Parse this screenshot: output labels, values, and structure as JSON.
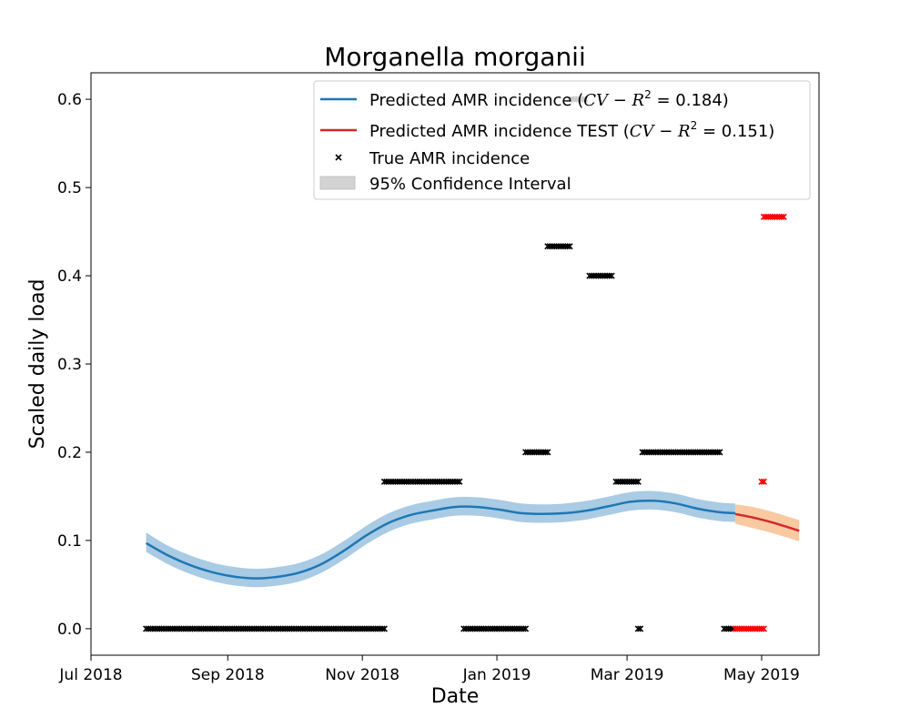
{
  "chart_data": {
    "type": "line",
    "title": "Morganella morganii",
    "xlabel": "Date",
    "ylabel": "Scaled daily load",
    "xlim": [
      "2018-07-01",
      "2019-05-27"
    ],
    "ylim": [
      -0.03,
      0.63
    ],
    "x_ticks": [
      {
        "date": "2018-07-01",
        "label": "Jul 2018"
      },
      {
        "date": "2018-09-01",
        "label": "Sep 2018"
      },
      {
        "date": "2018-11-01",
        "label": "Nov 2018"
      },
      {
        "date": "2019-01-01",
        "label": "Jan 2019"
      },
      {
        "date": "2019-03-01",
        "label": "Mar 2019"
      },
      {
        "date": "2019-05-01",
        "label": "May 2019"
      }
    ],
    "y_ticks": [
      0.0,
      0.1,
      0.2,
      0.3,
      0.4,
      0.5,
      0.6
    ],
    "y_tick_labels": [
      "0.0",
      "0.1",
      "0.2",
      "0.3",
      "0.4",
      "0.5",
      "0.6"
    ],
    "grid": false,
    "legend_position": "top-right",
    "legend": {
      "pred_prefix": "Predicted AMR incidence (",
      "pred_cv": "CV",
      "pred_minus": " − ",
      "pred_r": "R",
      "pred_sup": "2",
      "pred_suffix": " = 0.184)",
      "test_prefix": "Predicted AMR incidence TEST (",
      "test_cv": "CV",
      "test_minus": " − ",
      "test_r": "R",
      "test_sup": "2",
      "test_suffix": " = 0.151)",
      "true_label": "True AMR incidence",
      "ci_label": "95% Confidence Interval"
    },
    "colors": {
      "predicted": "#1f77b4",
      "predicted_band": "#a9cbe4",
      "test": "#d62728",
      "test_band": "#f9c9a2",
      "true_marker": "#000000",
      "test_marker": "#ff0000",
      "legend_ci": "#d3d3d3"
    },
    "series": [
      {
        "name": "Predicted AMR incidence",
        "x": [
          "2018-07-26",
          "2018-08-05",
          "2018-08-15",
          "2018-08-25",
          "2018-09-04",
          "2018-09-14",
          "2018-09-24",
          "2018-10-04",
          "2018-10-14",
          "2018-10-24",
          "2018-11-03",
          "2018-11-13",
          "2018-11-23",
          "2018-12-03",
          "2018-12-13",
          "2018-12-23",
          "2019-01-02",
          "2019-01-12",
          "2019-01-22",
          "2019-02-01",
          "2019-02-11",
          "2019-02-21",
          "2019-03-03",
          "2019-03-13",
          "2019-03-23",
          "2019-04-02",
          "2019-04-12",
          "2019-04-19"
        ],
        "y": [
          0.097,
          0.083,
          0.072,
          0.064,
          0.059,
          0.057,
          0.059,
          0.064,
          0.074,
          0.089,
          0.106,
          0.12,
          0.129,
          0.134,
          0.138,
          0.138,
          0.135,
          0.131,
          0.13,
          0.131,
          0.134,
          0.139,
          0.144,
          0.145,
          0.142,
          0.136,
          0.132,
          0.131
        ],
        "ci_lower": [
          0.087,
          0.073,
          0.062,
          0.054,
          0.049,
          0.047,
          0.049,
          0.054,
          0.064,
          0.079,
          0.096,
          0.11,
          0.119,
          0.124,
          0.128,
          0.128,
          0.125,
          0.121,
          0.12,
          0.121,
          0.124,
          0.129,
          0.134,
          0.135,
          0.132,
          0.126,
          0.122,
          0.121
        ],
        "ci_upper": [
          0.109,
          0.094,
          0.083,
          0.075,
          0.07,
          0.068,
          0.07,
          0.075,
          0.085,
          0.1,
          0.117,
          0.131,
          0.14,
          0.145,
          0.149,
          0.149,
          0.146,
          0.142,
          0.141,
          0.142,
          0.145,
          0.15,
          0.155,
          0.156,
          0.153,
          0.147,
          0.143,
          0.142
        ]
      },
      {
        "name": "Predicted AMR incidence TEST",
        "x": [
          "2019-04-19",
          "2019-04-27",
          "2019-05-05",
          "2019-05-13",
          "2019-05-18"
        ],
        "y": [
          0.13,
          0.126,
          0.121,
          0.115,
          0.111
        ],
        "ci_lower": [
          0.119,
          0.114,
          0.109,
          0.103,
          0.099
        ],
        "ci_upper": [
          0.141,
          0.138,
          0.133,
          0.127,
          0.123
        ]
      }
    ],
    "true_points": [
      {
        "y": 0.0,
        "from": "2018-07-26",
        "to": "2018-11-11"
      },
      {
        "y": 0.1667,
        "from": "2018-11-11",
        "to": "2018-12-15"
      },
      {
        "y": 0.0,
        "from": "2018-12-17",
        "to": "2019-01-14"
      },
      {
        "y": 0.2,
        "from": "2019-01-14",
        "to": "2019-01-24"
      },
      {
        "y": 0.4333,
        "from": "2019-01-24",
        "to": "2019-02-03"
      },
      {
        "y": 0.6,
        "from": "2019-02-03",
        "to": "2019-02-10"
      },
      {
        "y": 0.4,
        "from": "2019-02-12",
        "to": "2019-02-22"
      },
      {
        "y": 0.1667,
        "from": "2019-02-24",
        "to": "2019-03-06"
      },
      {
        "y": 0.0,
        "from": "2019-03-06",
        "to": "2019-03-07"
      },
      {
        "y": 0.2,
        "from": "2019-03-08",
        "to": "2019-04-12"
      },
      {
        "y": 0.0,
        "from": "2019-04-14",
        "to": "2019-04-18"
      }
    ],
    "test_points": [
      {
        "y": 0.0,
        "from": "2019-04-19",
        "to": "2019-05-02"
      },
      {
        "y": 0.1667,
        "from": "2019-05-01",
        "to": "2019-05-02"
      },
      {
        "y": 0.4667,
        "from": "2019-05-02",
        "to": "2019-05-11"
      }
    ]
  }
}
